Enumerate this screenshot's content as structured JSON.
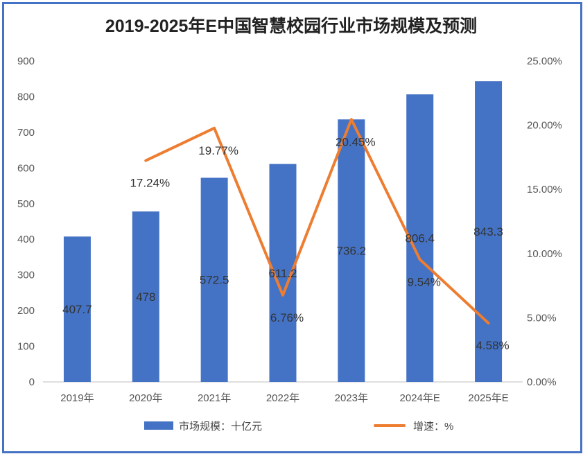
{
  "chart_data": {
    "type": "bar+line",
    "title": "2019-2025年E中国智慧校园行业市场规模及预测",
    "categories": [
      "2019年",
      "2020年",
      "2021年",
      "2022年",
      "2023年",
      "2024年E",
      "2025年E"
    ],
    "series": [
      {
        "name": "市场规模：十亿元",
        "type": "bar",
        "axis": "left",
        "color": "#4472c4",
        "values": [
          407.7,
          478,
          572.5,
          611.2,
          736.2,
          806.4,
          843.3
        ],
        "labels": [
          "407.7",
          "478",
          "572.5",
          "611.2",
          "736.2",
          "806.4",
          "843.3"
        ]
      },
      {
        "name": "增速：%",
        "type": "line",
        "axis": "right",
        "color": "#ed7d31",
        "values": [
          null,
          17.24,
          19.77,
          6.76,
          20.45,
          9.54,
          4.58
        ],
        "labels": [
          "",
          "17.24%",
          "19.77%",
          "6.76%",
          "20.45%",
          "9.54%",
          "4.58%"
        ]
      }
    ],
    "y_left": {
      "min": 0,
      "max": 900,
      "ticks": [
        "0",
        "100",
        "200",
        "300",
        "400",
        "500",
        "600",
        "700",
        "800",
        "900"
      ]
    },
    "y_right": {
      "min": 0,
      "max": 25,
      "ticks": [
        "0.00%",
        "5.00%",
        "10.00%",
        "15.00%",
        "20.00%",
        "25.00%"
      ]
    },
    "legend": {
      "position": "bottom",
      "items": [
        "市场规模：十亿元",
        "增速：%"
      ]
    },
    "grid": false
  }
}
